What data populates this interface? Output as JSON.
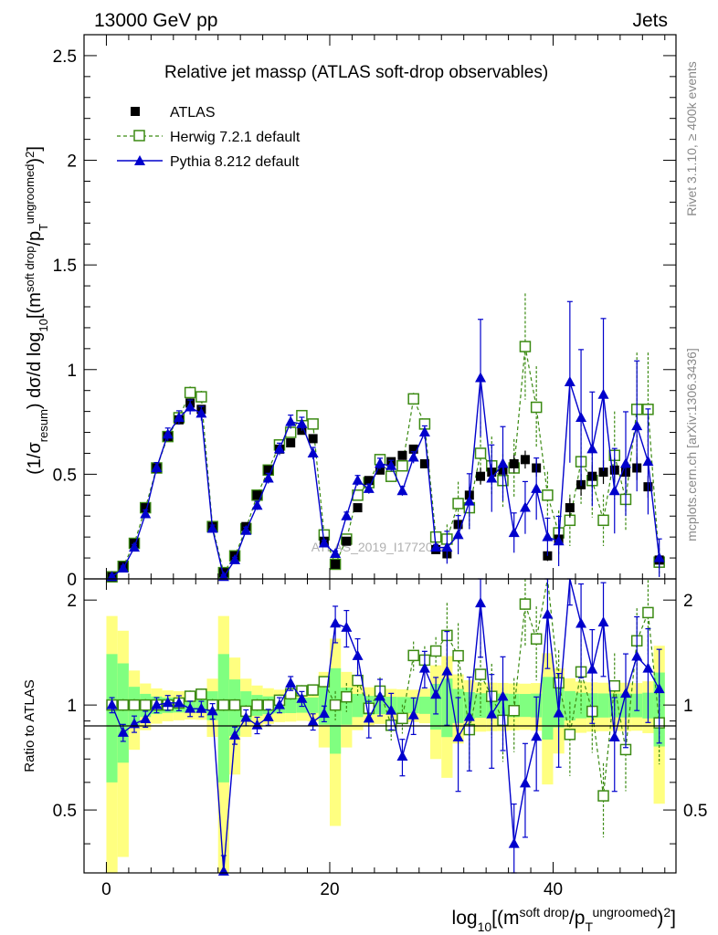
{
  "header": {
    "left_label": "13000 GeV pp",
    "right_label": "Jets"
  },
  "side_labels": {
    "rivet": "Rivet 3.1.10, ≥ 400k events",
    "mcplots": "mcplots.cern.ch [arXiv:1306.3436]"
  },
  "watermark": "ATLAS_2019_I1772062",
  "main_y_label": "(1/σresum) dσ/d log10[(m soft drop / pT ungroomed)2]",
  "ratio_y_label": "Ratio to ATLAS",
  "x_label": "log10[(m soft drop / pT ungroomed)2]",
  "legend_title": "Relative jet massρ (ATLAS soft-drop observables)",
  "colors": {
    "atlas": "#000000",
    "herwig": "#3b8a12",
    "pythia": "#0000cc",
    "band_outer": "#ffff80",
    "band_inner": "#80ff80"
  },
  "chart_data": {
    "type": "scatter",
    "title": "Relative jet massρ (ATLAS soft-drop observables)",
    "xlim": [
      -2,
      51
    ],
    "ylim": [
      0,
      2.6
    ],
    "ratio_ylim": [
      0.33,
      2.3
    ],
    "x_ticks": [
      "0",
      "20",
      "40"
    ],
    "y_ticks": [
      "0",
      "0.5",
      "1",
      "1.5",
      "2",
      "2.5"
    ],
    "ratio_ticks": [
      "0.5",
      "1",
      "2"
    ],
    "x": [
      0.5,
      1.5,
      2.5,
      3.5,
      4.5,
      5.5,
      6.5,
      7.5,
      8.5,
      9.5,
      10.5,
      11.5,
      12.5,
      13.5,
      14.5,
      15.5,
      16.5,
      17.5,
      18.5,
      19.5,
      20.5,
      21.5,
      22.5,
      23.5,
      24.5,
      25.5,
      26.5,
      27.5,
      28.5,
      29.5,
      30.5,
      31.5,
      32.5,
      33.5,
      34.5,
      35.5,
      36.5,
      37.5,
      38.5,
      39.5,
      40.5,
      41.5,
      42.5,
      43.5,
      44.5,
      45.5,
      46.5,
      47.5,
      48.5,
      49.5
    ],
    "series": [
      {
        "name": "ATLAS",
        "marker": "square",
        "values": [
          0.01,
          0.06,
          0.17,
          0.34,
          0.53,
          0.68,
          0.76,
          0.84,
          0.81,
          0.25,
          0.03,
          0.11,
          0.25,
          0.4,
          0.52,
          0.62,
          0.65,
          0.71,
          0.67,
          0.18,
          0.07,
          0.18,
          0.34,
          0.47,
          0.52,
          0.56,
          0.59,
          0.62,
          0.55,
          0.14,
          0.12,
          0.26,
          0.4,
          0.49,
          0.51,
          0.52,
          0.55,
          0.57,
          0.53,
          0.11,
          0.19,
          0.34,
          0.45,
          0.49,
          0.51,
          0.52,
          0.51,
          0.53,
          0.44,
          0.09
        ]
      },
      {
        "name": "Herwig 7.2.1 default",
        "marker": "open-square",
        "values": [
          0.01,
          0.06,
          0.17,
          0.34,
          0.53,
          0.68,
          0.77,
          0.89,
          0.87,
          0.25,
          0.03,
          0.11,
          0.24,
          0.4,
          0.52,
          0.64,
          0.7,
          0.78,
          0.74,
          0.21,
          0.07,
          0.19,
          0.4,
          0.46,
          0.57,
          0.49,
          0.54,
          0.86,
          0.74,
          0.2,
          0.19,
          0.36,
          0.34,
          0.6,
          0.54,
          0.47,
          0.53,
          1.11,
          0.82,
          0.4,
          0.22,
          0.28,
          0.56,
          0.47,
          0.28,
          0.59,
          0.38,
          0.81,
          0.81,
          0.08
        ]
      },
      {
        "name": "Pythia 8.212 default",
        "marker": "triangle",
        "values": [
          0.01,
          0.05,
          0.15,
          0.31,
          0.53,
          0.69,
          0.77,
          0.82,
          0.79,
          0.24,
          0.01,
          0.09,
          0.23,
          0.35,
          0.48,
          0.62,
          0.75,
          0.74,
          0.6,
          0.17,
          0.12,
          0.3,
          0.47,
          0.43,
          0.55,
          0.54,
          0.42,
          0.58,
          0.7,
          0.15,
          0.15,
          0.21,
          0.37,
          0.96,
          0.48,
          0.55,
          0.22,
          0.34,
          0.43,
          0.2,
          0.18,
          0.94,
          0.77,
          0.62,
          0.88,
          0.42,
          0.55,
          0.73,
          0.56,
          0.1
        ]
      }
    ]
  }
}
